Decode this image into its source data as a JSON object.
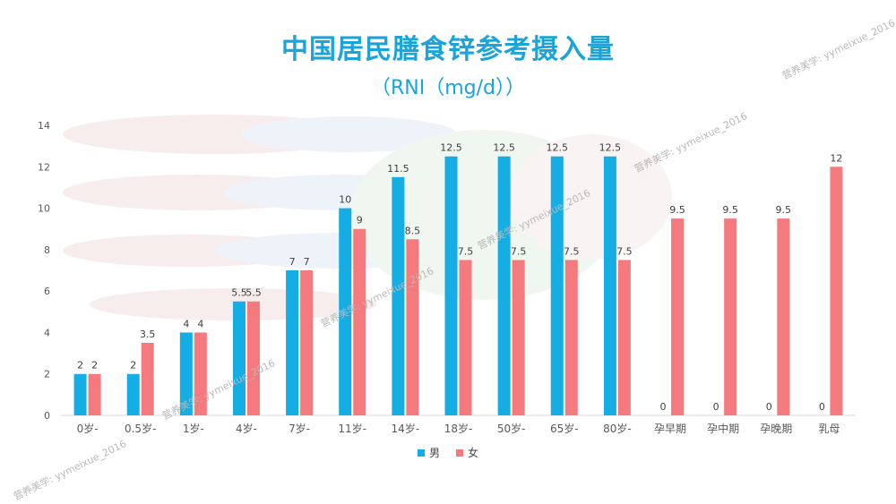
{
  "chart_data": {
    "type": "bar",
    "title": "中国居民膳食锌参考摄入量",
    "subtitle": "（RNI（mg/d））",
    "categories": [
      "0岁-",
      "0.5岁-",
      "1岁-",
      "4岁-",
      "7岁-",
      "11岁-",
      "14岁-",
      "18岁-",
      "50岁-",
      "65岁-",
      "80岁-",
      "孕早期",
      "孕中期",
      "孕晚期",
      "乳母"
    ],
    "series": [
      {
        "name": "男",
        "color": "#14aee5",
        "values": [
          2,
          2,
          4,
          5.5,
          7,
          10,
          11.5,
          12.5,
          12.5,
          12.5,
          12.5,
          0,
          0,
          0,
          0
        ]
      },
      {
        "name": "女",
        "color": "#f47a7e",
        "values": [
          2,
          3.5,
          4,
          5.5,
          7,
          9,
          8.5,
          7.5,
          7.5,
          7.5,
          7.5,
          9.5,
          9.5,
          9.5,
          12
        ]
      }
    ],
    "data_labels": {
      "男": [
        "2",
        "2",
        "4",
        "5.5",
        "7",
        "10",
        "11.5",
        "12.5",
        "12.5",
        "12.5",
        "12.5",
        "0",
        "0",
        "0",
        "0"
      ],
      "女": [
        "2",
        "3.5",
        "4",
        "5.5",
        "7",
        "9",
        "8.5",
        "7.5",
        "7.5",
        "7.5",
        "7.5",
        "9.5",
        "9.5",
        "9.5",
        "12"
      ]
    },
    "ylim": [
      0,
      14
    ],
    "yticks": [
      0,
      2,
      4,
      6,
      8,
      10,
      12,
      14
    ],
    "grid": false,
    "legend": "bottom-center",
    "xlabel": "",
    "ylabel": ""
  },
  "watermark": "营养美学: yymeixue_2016"
}
